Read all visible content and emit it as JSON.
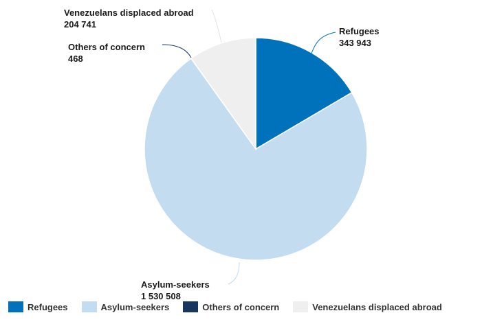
{
  "chart_data": {
    "type": "pie",
    "start_angle_deg": 0,
    "direction": "clockwise",
    "slices": [
      {
        "label": "Refugees",
        "value": 343943,
        "value_label": "343 943",
        "color": "#0072bc"
      },
      {
        "label": "Asylum-seekers",
        "value": 1530508,
        "value_label": "1 530 508",
        "color": "#c3dcef"
      },
      {
        "label": "Others of concern",
        "value": 468,
        "value_label": "468",
        "color": "#18375f"
      },
      {
        "label": "Venezuelans displaced abroad",
        "value": 204741,
        "value_label": "204 741",
        "color": "#efefef"
      }
    ],
    "legend": {
      "placement": "bottom-left"
    }
  }
}
